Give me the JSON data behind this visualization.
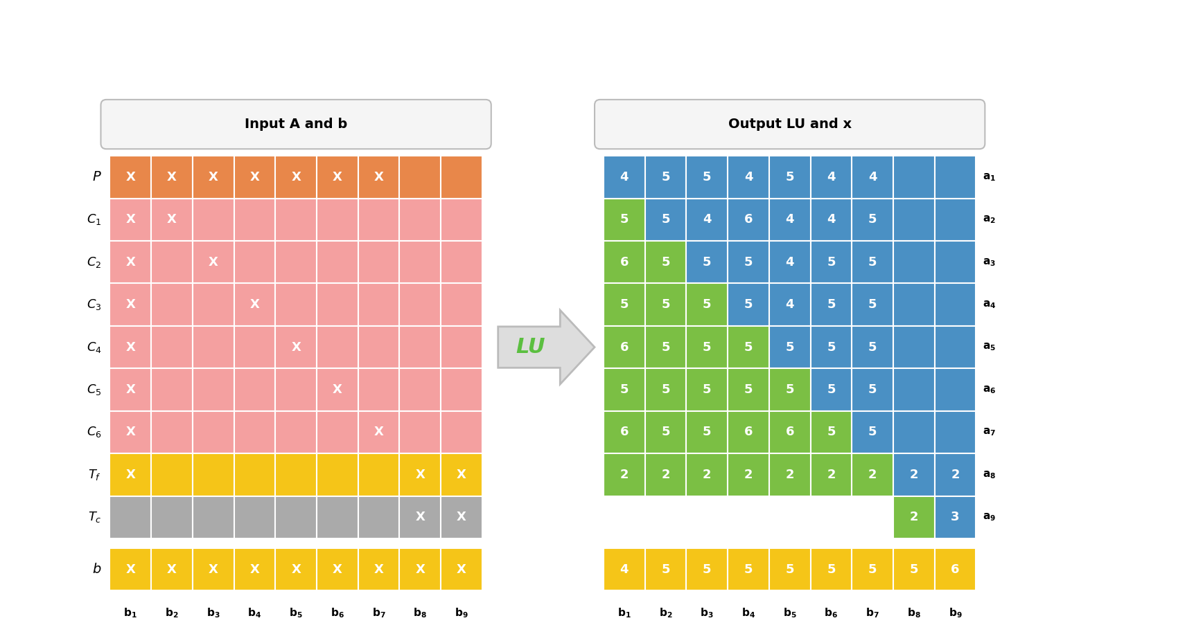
{
  "title_left": "Input A and b",
  "title_right": "Output LU and x",
  "lu_arrow_text": "LU",
  "row_labels_left": [
    "P",
    "C_1",
    "C_2",
    "C_3",
    "C_4",
    "C_5",
    "C_6",
    "T_f",
    "T_c"
  ],
  "col_labels_left": [
    "b_1",
    "b_2",
    "b_3",
    "b_4",
    "b_5",
    "b_6",
    "b_7",
    "b_8",
    "b_9"
  ],
  "row_labels_right": [
    "a_1",
    "a_2",
    "a_3",
    "a_4",
    "a_5",
    "a_6",
    "a_7",
    "a_8",
    "a_9"
  ],
  "col_labels_right": [
    "b_1",
    "b_2",
    "b_3",
    "b_4",
    "b_5",
    "b_6",
    "b_7",
    "b_8",
    "b_9"
  ],
  "colors": {
    "orange": "#E8874A",
    "pink": "#F4A0A0",
    "yellow": "#F5C518",
    "gray": "#AAAAAA",
    "blue": "#4A90C4",
    "green": "#7BBF44",
    "white": "#FFFFFF"
  },
  "left_grid_colors": [
    [
      "orange",
      "orange",
      "orange",
      "orange",
      "orange",
      "orange",
      "orange",
      "orange",
      "orange"
    ],
    [
      "pink",
      "pink",
      "pink",
      "pink",
      "pink",
      "pink",
      "pink",
      "pink",
      "pink"
    ],
    [
      "pink",
      "pink",
      "pink",
      "pink",
      "pink",
      "pink",
      "pink",
      "pink",
      "pink"
    ],
    [
      "pink",
      "pink",
      "pink",
      "pink",
      "pink",
      "pink",
      "pink",
      "pink",
      "pink"
    ],
    [
      "pink",
      "pink",
      "pink",
      "pink",
      "pink",
      "pink",
      "pink",
      "pink",
      "pink"
    ],
    [
      "pink",
      "pink",
      "pink",
      "pink",
      "pink",
      "pink",
      "pink",
      "pink",
      "pink"
    ],
    [
      "pink",
      "pink",
      "pink",
      "pink",
      "pink",
      "pink",
      "pink",
      "pink",
      "pink"
    ],
    [
      "yellow",
      "yellow",
      "yellow",
      "yellow",
      "yellow",
      "yellow",
      "yellow",
      "yellow",
      "yellow"
    ],
    [
      "gray",
      "gray",
      "gray",
      "gray",
      "gray",
      "gray",
      "gray",
      "gray",
      "gray"
    ]
  ],
  "left_x_marks": [
    [
      1,
      1,
      1,
      1,
      1,
      1,
      1,
      0,
      0
    ],
    [
      1,
      1,
      0,
      0,
      0,
      0,
      0,
      0,
      0
    ],
    [
      1,
      0,
      1,
      0,
      0,
      0,
      0,
      0,
      0
    ],
    [
      1,
      0,
      0,
      1,
      0,
      0,
      0,
      0,
      0
    ],
    [
      1,
      0,
      0,
      0,
      1,
      0,
      0,
      0,
      0
    ],
    [
      1,
      0,
      0,
      0,
      0,
      1,
      0,
      0,
      0
    ],
    [
      1,
      0,
      0,
      0,
      0,
      0,
      1,
      0,
      0
    ],
    [
      1,
      0,
      0,
      0,
      0,
      0,
      0,
      1,
      1
    ],
    [
      0,
      0,
      0,
      0,
      0,
      0,
      0,
      1,
      1
    ]
  ],
  "b_row_marks": [
    1,
    1,
    1,
    1,
    1,
    1,
    1,
    1,
    1
  ],
  "right_grid_colors": [
    [
      "blue",
      "blue",
      "blue",
      "blue",
      "blue",
      "blue",
      "blue",
      "blue",
      "blue"
    ],
    [
      "green",
      "blue",
      "blue",
      "blue",
      "blue",
      "blue",
      "blue",
      "blue",
      "blue"
    ],
    [
      "green",
      "green",
      "blue",
      "blue",
      "blue",
      "blue",
      "blue",
      "blue",
      "blue"
    ],
    [
      "green",
      "green",
      "green",
      "blue",
      "blue",
      "blue",
      "blue",
      "blue",
      "blue"
    ],
    [
      "green",
      "green",
      "green",
      "green",
      "blue",
      "blue",
      "blue",
      "blue",
      "blue"
    ],
    [
      "green",
      "green",
      "green",
      "green",
      "green",
      "blue",
      "blue",
      "blue",
      "blue"
    ],
    [
      "green",
      "green",
      "green",
      "green",
      "green",
      "green",
      "blue",
      "blue",
      "blue"
    ],
    [
      "green",
      "green",
      "green",
      "green",
      "green",
      "green",
      "green",
      "blue",
      "blue"
    ],
    [
      "none",
      "none",
      "none",
      "none",
      "none",
      "none",
      "none",
      "green",
      "blue"
    ]
  ],
  "right_values": [
    [
      4,
      5,
      5,
      4,
      5,
      4,
      4,
      "",
      ""
    ],
    [
      5,
      5,
      4,
      6,
      4,
      4,
      5,
      "",
      ""
    ],
    [
      6,
      5,
      5,
      5,
      4,
      5,
      5,
      "",
      ""
    ],
    [
      5,
      5,
      5,
      5,
      4,
      5,
      5,
      "",
      ""
    ],
    [
      6,
      5,
      5,
      5,
      5,
      5,
      5,
      "",
      ""
    ],
    [
      5,
      5,
      5,
      5,
      5,
      5,
      5,
      "",
      ""
    ],
    [
      6,
      5,
      5,
      6,
      6,
      5,
      5,
      "",
      ""
    ],
    [
      2,
      2,
      2,
      2,
      2,
      2,
      2,
      2,
      2
    ],
    [
      "",
      "",
      "",
      "",
      "",
      "",
      "",
      2,
      3
    ]
  ],
  "b_row_right": [
    4,
    5,
    5,
    5,
    5,
    5,
    5,
    5,
    6
  ],
  "figsize": [
    17.36,
    9.16
  ],
  "dpi": 100
}
